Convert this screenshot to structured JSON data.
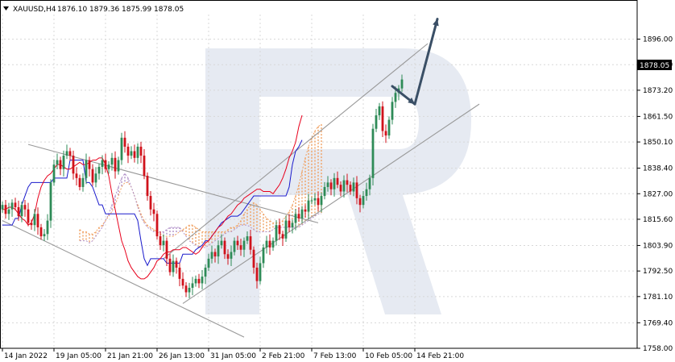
{
  "header": {
    "symbol": "XAUUSD,H4",
    "open": "1876.10",
    "high": "1879.36",
    "low": "1875.99",
    "close": "1878.05"
  },
  "price_tag": "1878.05",
  "colors": {
    "bull": "#2e8b57",
    "bear": "#d0121b",
    "tenkan": "#e8001c",
    "kijun": "#1a1acc",
    "cloud_orange": "#f0a060",
    "cloud_purple": "#b090c8",
    "channel": "#999999",
    "arrow": "#3a4f66",
    "watermark": "#dde3ee",
    "grid": "#d8d8d8"
  },
  "chart_data": {
    "type": "candlestick",
    "symbol": "XAUUSD",
    "timeframe": "H4",
    "ylim": [
      1758.0,
      1907.0
    ],
    "y_ticks": [
      "1896.00",
      "1884.60",
      "1873.20",
      "1861.50",
      "1850.10",
      "1838.40",
      "1827.00",
      "1815.60",
      "1803.90",
      "1792.50",
      "1781.10",
      "1769.40",
      "1758.00"
    ],
    "x_ticks": [
      "14 Jan 2022",
      "19 Jan 05:00",
      "21 Jan 21:00",
      "26 Jan 13:00",
      "31 Jan 05:00",
      "2 Feb 21:00",
      "7 Feb 13:00",
      "10 Feb 05:00",
      "14 Feb 21:00"
    ],
    "x_tick_index": [
      0,
      16,
      32,
      48,
      64,
      80,
      96,
      112,
      128
    ],
    "closes": [
      1822,
      1818,
      1820,
      1823,
      1821,
      1817,
      1822,
      1820,
      1814,
      1813,
      1818,
      1812,
      1808,
      1809,
      1815,
      1832,
      1840,
      1842,
      1838,
      1844,
      1846,
      1844,
      1836,
      1834,
      1830,
      1834,
      1842,
      1838,
      1832,
      1836,
      1839,
      1842,
      1838,
      1840,
      1843,
      1837,
      1842,
      1852,
      1848,
      1844,
      1846,
      1843,
      1848,
      1844,
      1835,
      1826,
      1820,
      1818,
      1808,
      1804,
      1806,
      1798,
      1792,
      1797,
      1794,
      1789,
      1786,
      1783,
      1785,
      1787,
      1789,
      1787,
      1790,
      1794,
      1798,
      1801,
      1799,
      1804,
      1806,
      1800,
      1798,
      1801,
      1806,
      1804,
      1802,
      1806,
      1808,
      1802,
      1794,
      1788,
      1796,
      1803,
      1806,
      1803,
      1806,
      1813,
      1809,
      1807,
      1815,
      1812,
      1814,
      1818,
      1816,
      1820,
      1819,
      1824,
      1824,
      1825,
      1822,
      1826,
      1830,
      1832,
      1829,
      1834,
      1831,
      1828,
      1833,
      1831,
      1828,
      1832,
      1825,
      1822,
      1826,
      1829,
      1834,
      1856,
      1862,
      1866,
      1855,
      1853,
      1860,
      1868,
      1872,
      1874,
      1878
    ],
    "tenkan": [
      1820,
      1820,
      1821,
      1821,
      1820,
      1818,
      1816,
      1815,
      1813,
      1814,
      1818,
      1825,
      1830,
      1833,
      1835,
      1836,
      1838,
      1840,
      1840,
      1839,
      1838,
      1838,
      1839,
      1840,
      1841,
      1840,
      1840,
      1841,
      1842,
      1842,
      1843,
      1843,
      1840,
      1835,
      1827,
      1820,
      1813,
      1806,
      1802,
      1797,
      1794,
      1792,
      1790,
      1789,
      1789,
      1790,
      1792,
      1794,
      1797,
      1798,
      1800,
      1801,
      1801,
      1802,
      1802,
      1802,
      1803,
      1803,
      1802,
      1801,
      1800,
      1801,
      1803,
      1805,
      1806,
      1808,
      1810,
      1812,
      1813,
      1815,
      1817,
      1818,
      1820,
      1822,
      1823,
      1825,
      1826,
      1827,
      1828,
      1829,
      1829,
      1828,
      1828,
      1828,
      1827,
      1829,
      1831,
      1834,
      1838,
      1843,
      1846,
      1850,
      1857,
      1862
    ],
    "tenkan_start": 0,
    "kijun": [
      1813,
      1813,
      1813,
      1813,
      1816,
      1816,
      1822,
      1826,
      1830,
      1832,
      1832,
      1832,
      1832,
      1832,
      1832,
      1832,
      1834,
      1834,
      1834,
      1834,
      1834,
      1842,
      1842,
      1842,
      1842,
      1842,
      1832,
      1832,
      1830,
      1826,
      1822,
      1822,
      1818,
      1818,
      1818,
      1818,
      1818,
      1818,
      1818,
      1818,
      1818,
      1818,
      1815,
      1806,
      1798,
      1795,
      1798,
      1798,
      1798,
      1798,
      1798,
      1796,
      1796,
      1796,
      1796,
      1796,
      1800,
      1800,
      1800,
      1800,
      1802,
      1803,
      1804,
      1806,
      1806,
      1808,
      1810,
      1812,
      1814,
      1815,
      1816,
      1817,
      1817,
      1817,
      1818,
      1820,
      1822,
      1824,
      1826,
      1826,
      1826,
      1826,
      1826,
      1826,
      1826,
      1826,
      1826,
      1826,
      1826,
      1830,
      1840,
      1846,
      1848,
      1851
    ],
    "kijun_start": 0,
    "cloud_a": [
      1811,
      1810,
      1810,
      1809,
      1809,
      1810,
      1812,
      1813,
      1815,
      1817,
      1819,
      1822,
      1826,
      1830,
      1832,
      1832,
      1830,
      1826,
      1822,
      1818,
      1815,
      1813,
      1812,
      1811,
      1810,
      1809,
      1808,
      1808,
      1808,
      1808,
      1809,
      1810,
      1811,
      1812,
      1813,
      1813,
      1812,
      1811,
      1810,
      1810,
      1810,
      1810,
      1810,
      1810,
      1810,
      1810,
      1811,
      1812,
      1812,
      1813,
      1815,
      1818,
      1820,
      1822,
      1823,
      1822,
      1820,
      1818,
      1816,
      1815,
      1814,
      1814,
      1814,
      1815,
      1817,
      1819,
      1822,
      1826,
      1831,
      1837,
      1843,
      1848,
      1852,
      1855,
      1857,
      1858
    ],
    "cloud_b": [
      1806,
      1806,
      1806,
      1805,
      1806,
      1808,
      1810,
      1812,
      1815,
      1818,
      1822,
      1826,
      1830,
      1834,
      1836,
      1834,
      1830,
      1826,
      1821,
      1817,
      1814,
      1812,
      1811,
      1810,
      1810,
      1810,
      1810,
      1811,
      1812,
      1812,
      1812,
      1812,
      1810,
      1808,
      1806,
      1805,
      1804,
      1803,
      1803,
      1803,
      1804,
      1805,
      1806,
      1807,
      1808,
      1809,
      1810,
      1810,
      1811,
      1812,
      1813,
      1813,
      1813,
      1812,
      1811,
      1810,
      1810,
      1810,
      1810,
      1810,
      1811,
      1812,
      1812,
      1812,
      1812,
      1812,
      1812,
      1812,
      1812,
      1813,
      1814,
      1815,
      1816,
      1817,
      1818,
      1818
    ],
    "cloud_start": 24,
    "channels": [
      {
        "p1": [
          8,
          1849
        ],
        "p2": [
          98,
          1814
        ]
      },
      {
        "p1": [
          0,
          1815
        ],
        "p2": [
          75,
          1763
        ]
      },
      {
        "p1": [
          56,
          1778
        ],
        "p2": [
          148,
          1867
        ]
      },
      {
        "p1": [
          50,
          1798
        ],
        "p2": [
          132,
          1894
        ]
      }
    ],
    "arrows": [
      {
        "from": [
          121,
          1875
        ],
        "to": [
          128,
          1867
        ]
      },
      {
        "from": [
          128,
          1867
        ],
        "to": [
          135,
          1905
        ]
      }
    ]
  }
}
